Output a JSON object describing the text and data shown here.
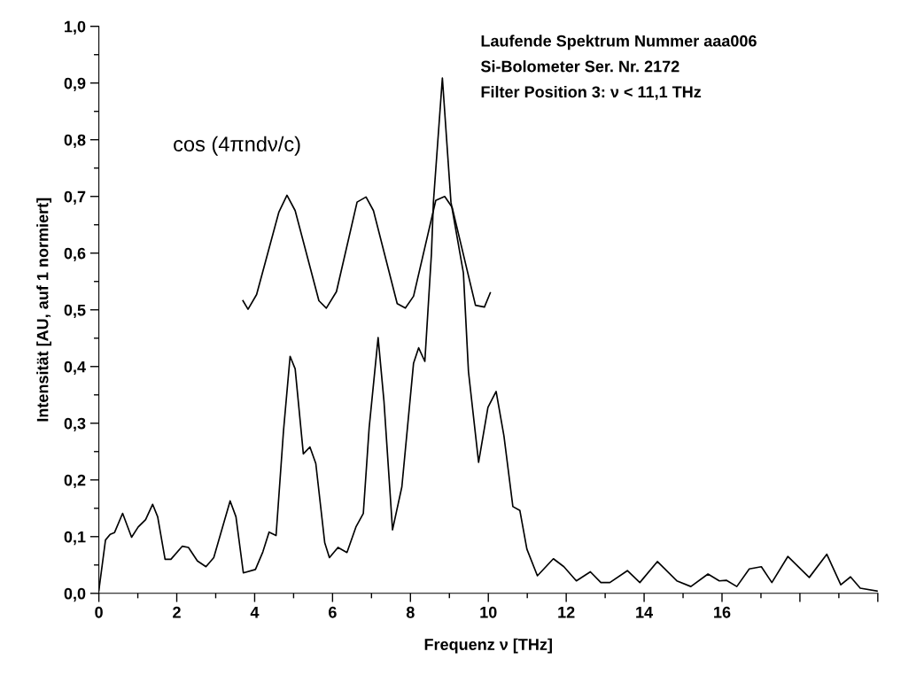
{
  "chart_data": {
    "type": "line",
    "xlabel": "Frequenz ν [THz]",
    "ylabel": "Intensität [AU, auf 1 normiert]",
    "annotations": [
      "Laufende Spektrum Nummer aaa006",
      "Si-Bolometer Ser. Nr. 2172",
      "Filter Position 3: ν < 11,1 THz"
    ],
    "series": [
      {
        "color": "#000000",
        "x": [
          0.0,
          0.17,
          0.29,
          0.4,
          0.61,
          0.84,
          1.01,
          1.2,
          1.38,
          1.51,
          1.7,
          1.85,
          2.14,
          2.3,
          2.53,
          2.75,
          2.95,
          3.37,
          3.52,
          3.71,
          4.02,
          4.21,
          4.37,
          4.55,
          4.74,
          4.91,
          5.04,
          5.25,
          5.42,
          5.57,
          5.8,
          5.92,
          6.14,
          6.37,
          6.6,
          6.79,
          6.94,
          7.17,
          7.32,
          7.54,
          7.78,
          8.08,
          8.21,
          8.37,
          8.54,
          8.59,
          8.82,
          9.04,
          9.36,
          9.49,
          9.75,
          9.99,
          10.2,
          10.4,
          10.63,
          10.81,
          10.99,
          11.26,
          11.67,
          11.94,
          12.26,
          12.62,
          12.89,
          13.12,
          13.57,
          13.89,
          14.34,
          14.84,
          15.2,
          15.64,
          15.93,
          16.11,
          16.38,
          16.7,
          17.01,
          17.28,
          17.69,
          18.24,
          18.69,
          19.05,
          19.3,
          19.55,
          19.99
        ],
        "values": [
          0.005,
          0.094,
          0.104,
          0.107,
          0.141,
          0.099,
          0.117,
          0.13,
          0.157,
          0.135,
          0.06,
          0.06,
          0.083,
          0.081,
          0.057,
          0.047,
          0.063,
          0.163,
          0.135,
          0.036,
          0.042,
          0.073,
          0.108,
          0.102,
          0.286,
          0.418,
          0.396,
          0.246,
          0.258,
          0.229,
          0.089,
          0.063,
          0.081,
          0.072,
          0.117,
          0.141,
          0.292,
          0.451,
          0.339,
          0.112,
          0.188,
          0.406,
          0.433,
          0.409,
          0.6,
          0.69,
          0.909,
          0.69,
          0.565,
          0.391,
          0.231,
          0.328,
          0.356,
          0.278,
          0.153,
          0.146,
          0.078,
          0.031,
          0.061,
          0.047,
          0.022,
          0.038,
          0.019,
          0.019,
          0.04,
          0.019,
          0.056,
          0.022,
          0.012,
          0.034,
          0.022,
          0.023,
          0.012,
          0.043,
          0.047,
          0.019,
          0.065,
          0.028,
          0.069,
          0.015,
          0.029,
          0.009,
          0.004
        ]
      },
      {
        "name": "cos (4πndν/c)",
        "color": "#000000",
        "x": [
          3.7,
          3.83,
          4.05,
          4.62,
          4.83,
          5.04,
          5.65,
          5.84,
          6.1,
          6.63,
          6.86,
          7.05,
          7.66,
          7.87,
          8.08,
          8.65,
          8.88,
          9.07,
          9.67,
          9.9,
          10.05
        ],
        "values": [
          0.516,
          0.501,
          0.527,
          0.672,
          0.702,
          0.675,
          0.516,
          0.503,
          0.532,
          0.69,
          0.699,
          0.675,
          0.511,
          0.503,
          0.524,
          0.693,
          0.7,
          0.681,
          0.508,
          0.505,
          0.53
        ]
      }
    ],
    "xlim": [
      0,
      20
    ],
    "ylim": [
      0,
      1.0
    ],
    "xticks": [
      0,
      2,
      4,
      6,
      8,
      10,
      12,
      14,
      16,
      {
        "value": 18,
        "label": null
      },
      {
        "value": 20,
        "label": null
      }
    ],
    "yticks": [
      {
        "value": 0,
        "label": "0,0"
      },
      {
        "value": 0.1,
        "label": "0,1"
      },
      {
        "value": 0.2,
        "label": "0,2"
      },
      {
        "value": 0.3,
        "label": "0,3"
      },
      {
        "value": 0.4,
        "label": "0,4"
      },
      {
        "value": 0.5,
        "label": "0,5"
      },
      {
        "value": 0.6,
        "label": "0,6"
      },
      {
        "value": 0.7,
        "label": "0,7"
      },
      {
        "value": 0.8,
        "label": "0,8"
      },
      {
        "value": 0.9,
        "label": "0,9"
      },
      {
        "value": 1.0,
        "label": "1,0"
      }
    ],
    "grid": false,
    "legend": false,
    "marker": "none",
    "line_style": "solid"
  }
}
